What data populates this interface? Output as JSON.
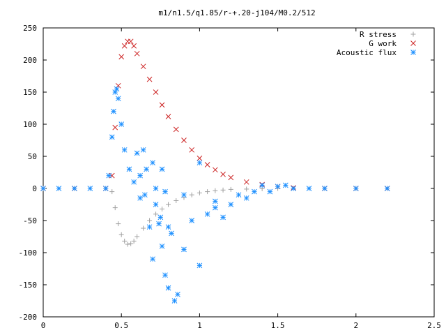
{
  "chart_data": {
    "type": "scatter",
    "title": "m1/n1.5/q1.85/r-+.20-j104/M0.2/512",
    "xlabel": "",
    "ylabel": "",
    "xlim": [
      0,
      2.5
    ],
    "ylim": [
      -200,
      250
    ],
    "x_ticks": [
      "0",
      "0.5",
      "1",
      "1.5",
      "2",
      "2.5"
    ],
    "y_ticks": [
      "250",
      "200",
      "150",
      "100",
      "50",
      "0",
      "-50",
      "-100",
      "-150",
      "-200"
    ],
    "grid": false,
    "legend_position": "top-right",
    "series": [
      {
        "name": "R stress",
        "marker": "plus",
        "color": "#a0a0a0",
        "x": [
          0.0,
          0.2,
          0.4,
          0.44,
          0.46,
          0.48,
          0.5,
          0.52,
          0.54,
          0.56,
          0.58,
          0.6,
          0.64,
          0.68,
          0.72,
          0.76,
          0.8,
          0.85,
          0.9,
          0.95,
          1.0,
          1.05,
          1.1,
          1.15,
          1.2,
          1.3,
          1.4,
          1.5,
          1.6,
          1.8,
          2.0,
          2.2
        ],
        "y": [
          0,
          0,
          0,
          -5,
          -30,
          -55,
          -72,
          -82,
          -87,
          -86,
          -82,
          -75,
          -62,
          -50,
          -40,
          -32,
          -25,
          -19,
          -14,
          -10,
          -7,
          -5,
          -3.5,
          -2.5,
          -1.5,
          -1,
          -0.5,
          0,
          0,
          0,
          0,
          0
        ]
      },
      {
        "name": "G work",
        "marker": "cross",
        "color": "#cc2222",
        "x": [
          0.0,
          0.2,
          0.4,
          0.44,
          0.46,
          0.48,
          0.5,
          0.52,
          0.54,
          0.56,
          0.58,
          0.6,
          0.64,
          0.68,
          0.72,
          0.76,
          0.8,
          0.85,
          0.9,
          0.95,
          1.0,
          1.05,
          1.1,
          1.15,
          1.2,
          1.3,
          1.4,
          1.5,
          1.6,
          1.8,
          2.0,
          2.2
        ],
        "y": [
          0,
          0,
          0,
          20,
          95,
          160,
          205,
          222,
          229,
          229,
          222,
          210,
          190,
          170,
          150,
          130,
          112,
          92,
          75,
          60,
          47,
          37,
          29,
          22,
          17,
          10,
          6,
          3,
          1,
          0,
          0,
          0
        ]
      },
      {
        "name": "Acoustic flux",
        "marker": "star",
        "color": "#1e90ff",
        "x": [
          0.0,
          0.1,
          0.2,
          0.3,
          0.4,
          0.42,
          0.44,
          0.45,
          0.46,
          0.47,
          0.48,
          0.5,
          0.52,
          0.55,
          0.58,
          0.6,
          0.62,
          0.62,
          0.64,
          0.65,
          0.66,
          0.68,
          0.7,
          0.7,
          0.72,
          0.72,
          0.74,
          0.75,
          0.76,
          0.76,
          0.78,
          0.78,
          0.8,
          0.8,
          0.82,
          0.84,
          0.86,
          0.9,
          0.9,
          0.95,
          1.0,
          1.0,
          1.05,
          1.1,
          1.1,
          1.15,
          1.2,
          1.25,
          1.3,
          1.35,
          1.4,
          1.45,
          1.5,
          1.55,
          1.6,
          1.7,
          1.8,
          2.0,
          2.2
        ],
        "y": [
          0,
          0,
          0,
          0,
          0,
          20,
          80,
          120,
          150,
          155,
          140,
          100,
          60,
          30,
          10,
          55,
          -15,
          20,
          60,
          -10,
          30,
          -60,
          -110,
          40,
          -25,
          0,
          -55,
          -45,
          30,
          -90,
          -135,
          -5,
          -155,
          -60,
          -70,
          -175,
          -165,
          -95,
          -10,
          -50,
          40,
          -120,
          -40,
          -20,
          -30,
          -45,
          -25,
          -10,
          -15,
          -5,
          5,
          -5,
          3,
          5,
          0,
          0,
          0,
          0,
          0
        ]
      }
    ]
  }
}
